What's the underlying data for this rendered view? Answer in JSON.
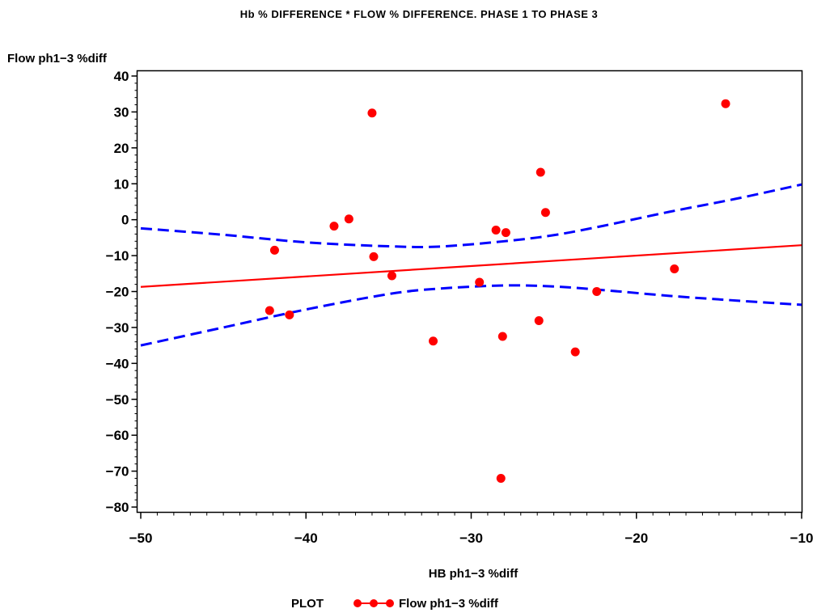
{
  "chart_data": {
    "type": "scatter",
    "title": "Hb % DIFFERENCE * FLOW % DIFFERENCE. PHASE 1 TO PHASE 3",
    "xlabel": "HB ph1−3 %diff",
    "ylabel": "Flow ph1−3 %diff",
    "xlim": [
      -50,
      -10
    ],
    "ylim": [
      -82,
      42
    ],
    "xticks": [
      -50,
      -40,
      -30,
      -20,
      -10
    ],
    "xtick_labels": [
      "−50",
      "−40",
      "−30",
      "−20",
      "−10"
    ],
    "yticks": [
      40,
      30,
      20,
      10,
      0,
      -10,
      -20,
      -30,
      -40,
      -50,
      -60,
      -70,
      -80
    ],
    "ytick_labels": [
      "40",
      "30",
      "20",
      "10",
      "0",
      "−10",
      "−20",
      "−30",
      "−40",
      "−50",
      "−60",
      "−70",
      "−80"
    ],
    "grid": false,
    "legend": {
      "title": "PLOT",
      "placement": "bottom",
      "entries": [
        "Flow ph1−3 %diff"
      ]
    },
    "series": [
      {
        "name": "Flow ph1−3 %diff",
        "color": "#ff0000",
        "points": [
          {
            "x": -42.2,
            "y": -25.3
          },
          {
            "x": -41.9,
            "y": -8.5
          },
          {
            "x": -41.0,
            "y": -26.5
          },
          {
            "x": -38.3,
            "y": -1.8
          },
          {
            "x": -37.4,
            "y": 0.2
          },
          {
            "x": -36.0,
            "y": 29.7
          },
          {
            "x": -35.9,
            "y": -10.3
          },
          {
            "x": -34.8,
            "y": -15.6
          },
          {
            "x": -32.3,
            "y": -33.8
          },
          {
            "x": -29.5,
            "y": -17.4
          },
          {
            "x": -28.5,
            "y": -2.9
          },
          {
            "x": -28.2,
            "y": -72.0
          },
          {
            "x": -28.1,
            "y": -32.5
          },
          {
            "x": -27.9,
            "y": -3.6
          },
          {
            "x": -25.9,
            "y": -28.1
          },
          {
            "x": -25.8,
            "y": 13.2
          },
          {
            "x": -25.5,
            "y": 2.0
          },
          {
            "x": -23.7,
            "y": -36.8
          },
          {
            "x": -22.4,
            "y": -20.0
          },
          {
            "x": -17.7,
            "y": -13.7
          },
          {
            "x": -14.6,
            "y": 32.3
          }
        ]
      }
    ],
    "fit_line": {
      "color": "#ff0000",
      "x": [
        -50,
        -10
      ],
      "y": [
        -18.7,
        -7.1
      ]
    },
    "confidence_band": {
      "color": "#0000ff",
      "x": [
        -50,
        -45,
        -40,
        -35,
        -32,
        -28,
        -25,
        -22,
        -18,
        -14,
        -10
      ],
      "upper": [
        -2.4,
        -4.2,
        -6.3,
        -7.4,
        -7.5,
        -6.0,
        -4.3,
        -1.7,
        2.2,
        5.8,
        9.8
      ],
      "lower": [
        -35.0,
        -30.0,
        -25.0,
        -20.7,
        -19.2,
        -18.3,
        -18.6,
        -19.6,
        -21.2,
        -22.5,
        -23.7
      ]
    }
  }
}
